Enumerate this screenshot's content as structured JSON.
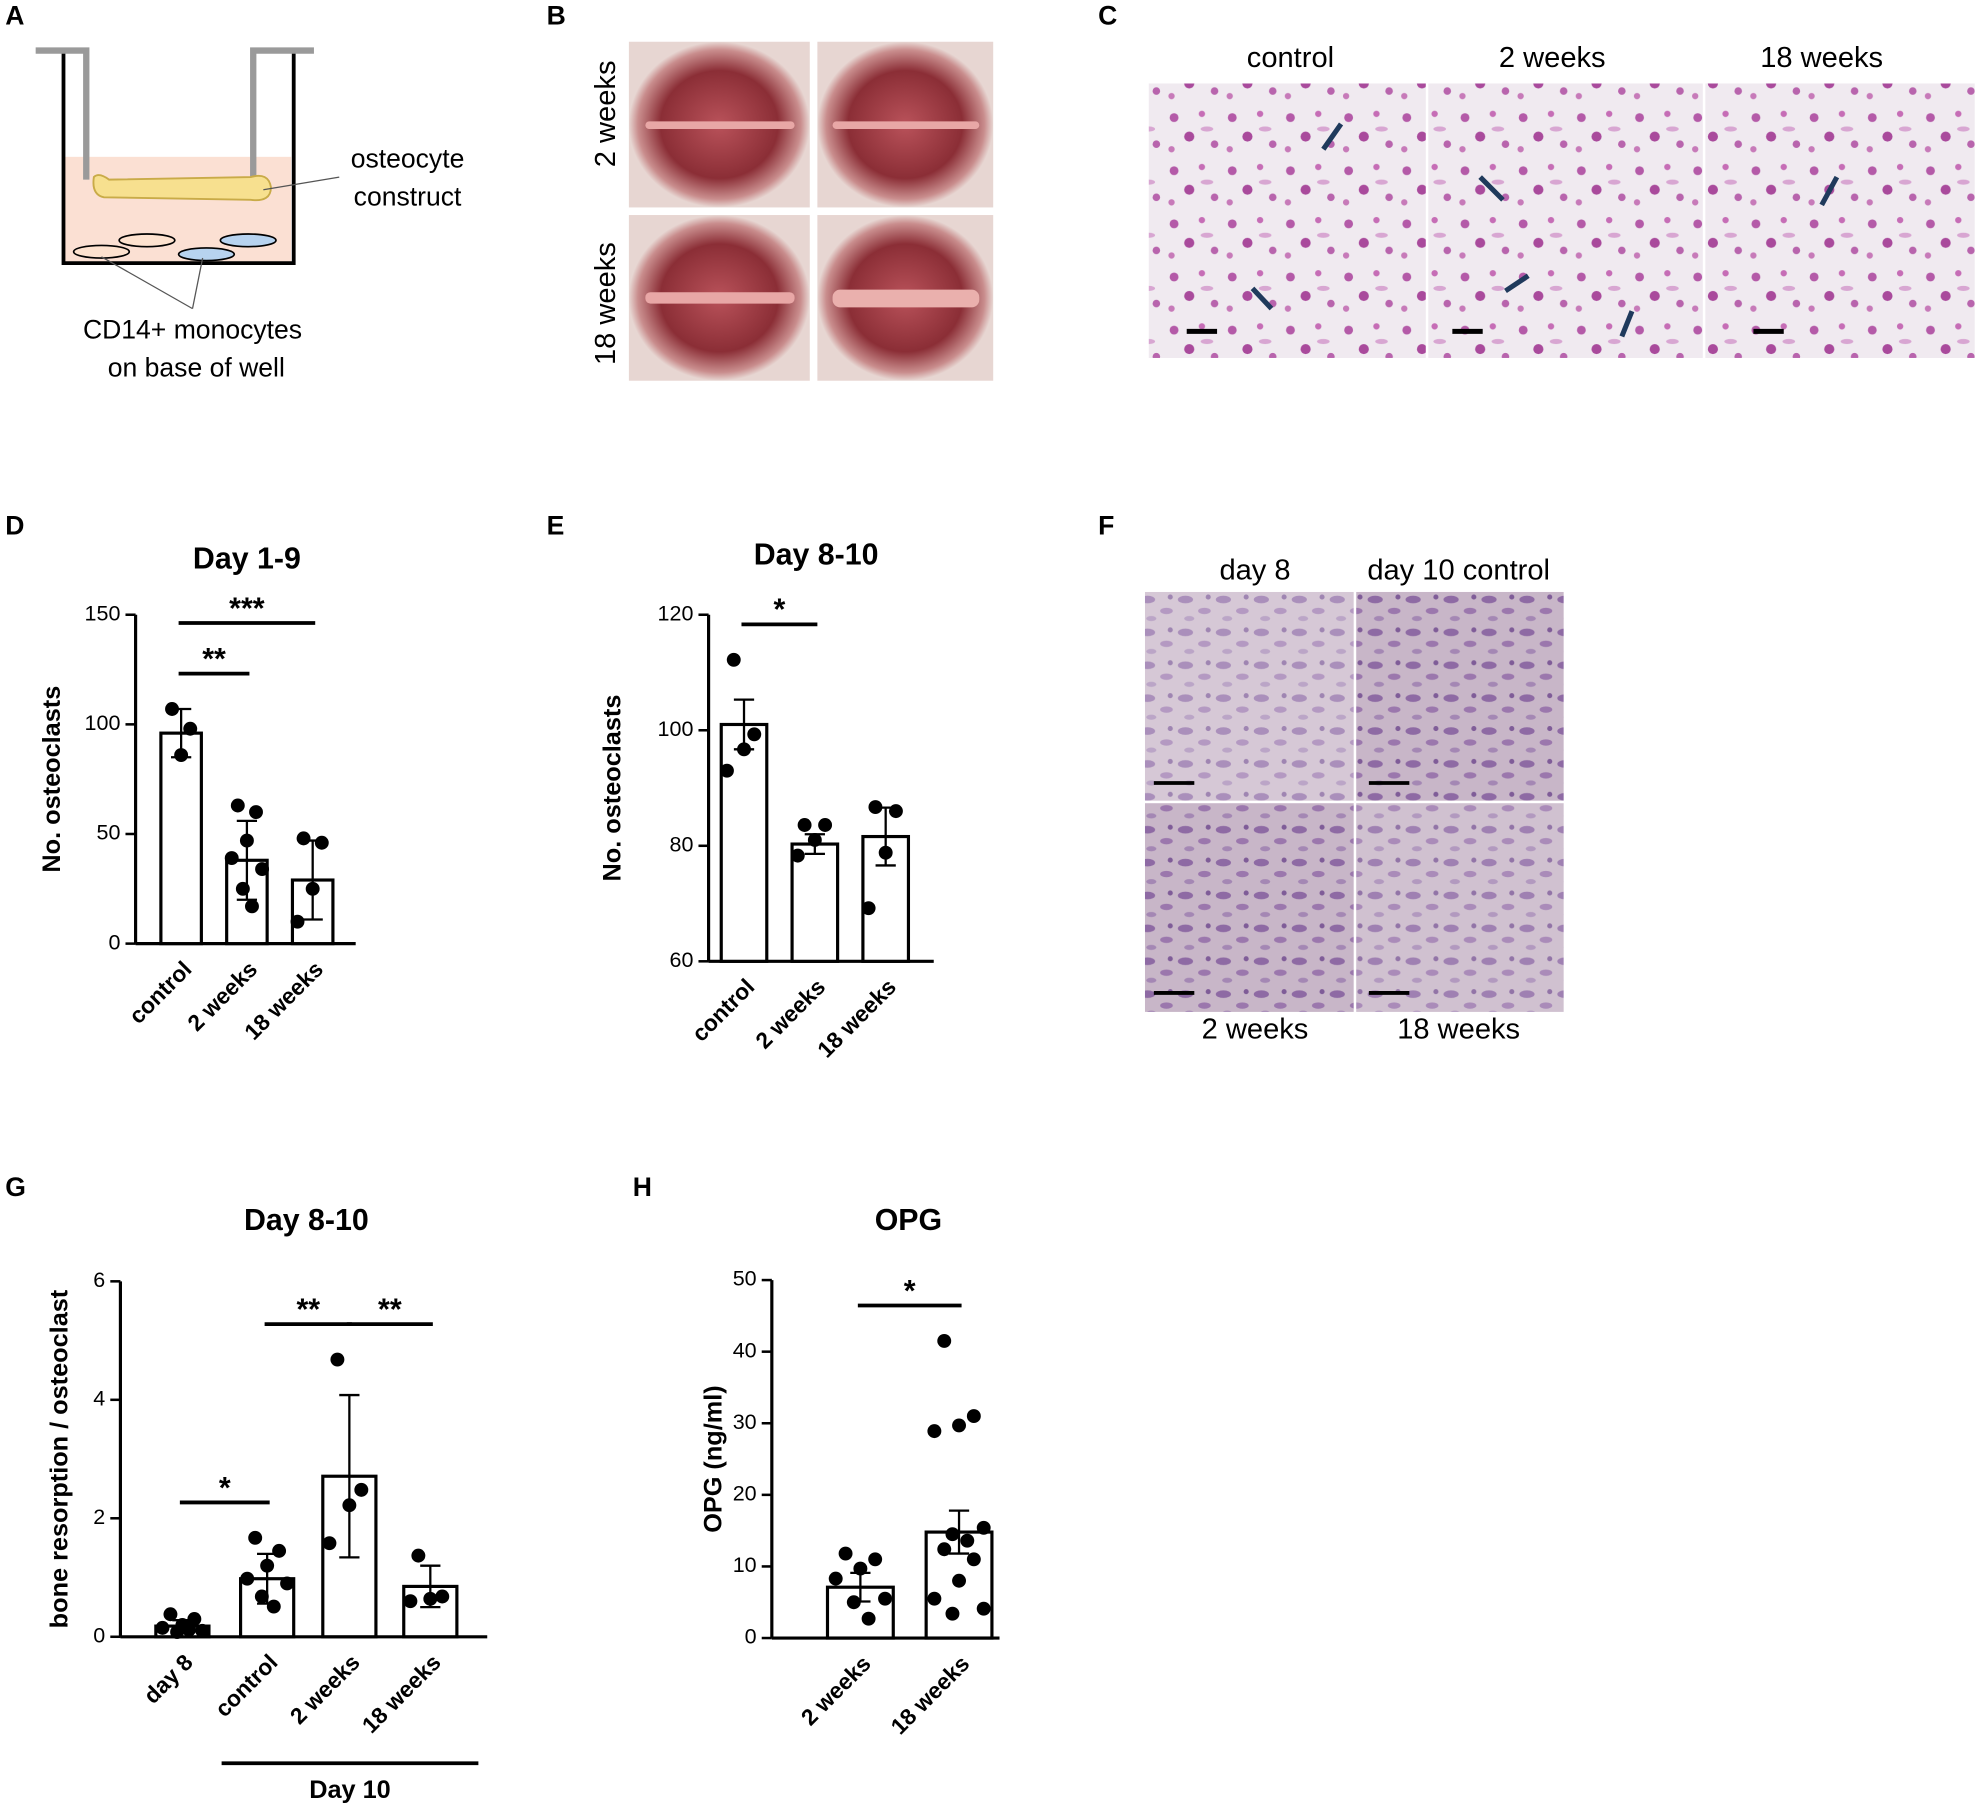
{
  "panels": {
    "letters": [
      "A",
      "B",
      "C",
      "D",
      "E",
      "F",
      "G",
      "H"
    ]
  },
  "diagram": {
    "construct_label": [
      "osteocyte",
      "construct"
    ],
    "cells_label": [
      "CD14+ monocytes",
      "on base of well"
    ]
  },
  "photos_b": {
    "row_labels": [
      "2 weeks",
      "18 weeks"
    ]
  },
  "photos_c": {
    "column_labels": [
      "control",
      "2 weeks",
      "18 weeks"
    ]
  },
  "photos_f": {
    "top_labels": [
      "day 8",
      "day 10 control"
    ],
    "bottom_labels": [
      "2 weeks",
      "18 weeks"
    ]
  },
  "chart_data": [
    {
      "type": "bar",
      "title": "Day 1-9",
      "y_label": "No. osteoclasts",
      "categories": [
        "control",
        "2 weeks",
        "18 weeks"
      ],
      "values": [
        96,
        38,
        29
      ],
      "errors": [
        11,
        18,
        18
      ],
      "points": [
        [
          107,
          98,
          86
        ],
        [
          63,
          60,
          47,
          39,
          34,
          25,
          17
        ],
        [
          48,
          46,
          25,
          10
        ]
      ],
      "significance": [
        {
          "from": 0,
          "to": 1,
          "label": "**"
        },
        {
          "from": 0,
          "to": 2,
          "label": "***"
        }
      ],
      "ylim": [
        0,
        150
      ],
      "yticks": [
        0,
        50,
        100,
        150
      ],
      "color": "#ffffff",
      "edge_color": "#000000"
    },
    {
      "type": "bar",
      "title": "Day 8-10",
      "y_label": "No. osteoclasts",
      "categories": [
        "control",
        "2 weeks",
        "18 weeks"
      ],
      "values": [
        101,
        80.3,
        81.6
      ],
      "errors": [
        4.3,
        1.7,
        5
      ],
      "points": [
        [
          112.2,
          99.3,
          96.7,
          93
        ],
        [
          83.6,
          83.6,
          81,
          78.3
        ],
        [
          86.7,
          86,
          78.8,
          69.2
        ]
      ],
      "significance": [
        {
          "from": 0,
          "to": 1,
          "label": "*"
        }
      ],
      "ylim": [
        60,
        120
      ],
      "yticks": [
        60,
        80,
        100,
        120
      ],
      "color": "#ffffff",
      "edge_color": "#000000"
    },
    {
      "type": "bar",
      "title": "Day 8-10",
      "y_label": "bone resorption / osteoclast",
      "categories": [
        "day 8",
        "control",
        "2 weeks",
        "18 weeks"
      ],
      "values": [
        0.18,
        0.98,
        2.71,
        0.85
      ],
      "errors": [
        0.1,
        0.42,
        1.37,
        0.35
      ],
      "points": [
        [
          0.38,
          0.3,
          0.2,
          0.15,
          0.1,
          0.08,
          0.12
        ],
        [
          1.67,
          1.45,
          1.2,
          0.98,
          0.9,
          0.68,
          0.51
        ],
        [
          4.68,
          2.48,
          2.22,
          1.58
        ],
        [
          1.37,
          0.68,
          0.64,
          0.6
        ]
      ],
      "significance": [
        {
          "from": 0,
          "to": 1,
          "label": "*"
        },
        {
          "from": 1,
          "to": 2,
          "label": "**"
        },
        {
          "from": 2,
          "to": 3,
          "label": "**"
        }
      ],
      "group": {
        "label": "Day 10",
        "from": 1,
        "to": 3
      },
      "ylim": [
        0,
        6
      ],
      "yticks": [
        0,
        2,
        4,
        6
      ],
      "color": "#ffffff",
      "edge_color": "#000000"
    },
    {
      "type": "bar",
      "title": "OPG",
      "y_label": "OPG (ng/ml)",
      "categories": [
        "2 weeks",
        "18 weeks"
      ],
      "values": [
        7.1,
        14.8
      ],
      "errors": [
        2,
        3
      ],
      "points": [
        [
          11.8,
          11,
          9.7,
          8.3,
          5.5,
          5,
          2.7
        ],
        [
          41.5,
          31,
          29.7,
          28.9,
          15.4,
          14.5,
          13.6,
          12.4,
          11,
          8,
          5.5,
          4.1,
          3.4
        ]
      ],
      "significance": [
        {
          "from": 0,
          "to": 1,
          "label": "*"
        }
      ],
      "ylim": [
        0,
        50
      ],
      "yticks": [
        0,
        10,
        20,
        30,
        40,
        50
      ],
      "color": "#ffffff",
      "edge_color": "#000000"
    }
  ]
}
